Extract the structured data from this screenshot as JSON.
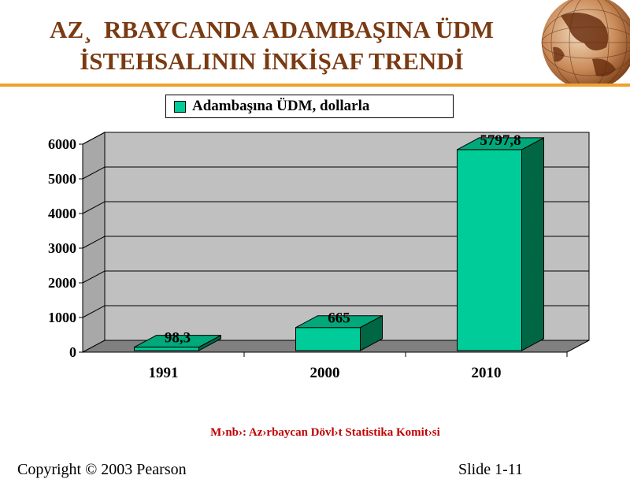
{
  "title_lines": [
    "AZ¸  RBAYCANDA ADAMBAŞINA ÜDM",
    "İSTEHSALININ İNKİŞAF TRENDİ"
  ],
  "colors": {
    "title": "#7a3a12",
    "rule": "#f0a030",
    "bar_front": "#00cc99",
    "bar_side": "#006644",
    "bar_top": "#00a87a",
    "wall": "#c0c0c0",
    "floor": "#808080",
    "source": "#c00000"
  },
  "chart_data": {
    "type": "bar",
    "categories": [
      "1991",
      "2000",
      "2010"
    ],
    "series": [
      {
        "name": "Adambaşına ÜDM, dollarla",
        "values": [
          98.3,
          665,
          5797.8
        ]
      }
    ],
    "data_labels": [
      "98,3",
      "665",
      "5797,8"
    ],
    "yticks": [
      "0",
      "1000",
      "2000",
      "3000",
      "4000",
      "5000",
      "6000"
    ],
    "ylim": [
      0,
      6000
    ],
    "grid": true,
    "legend_position": "top",
    "style": "3d"
  },
  "source_text": "M›nb›: Az›rbaycan Dövl›t Statistika Komit›si",
  "footer": {
    "left": "Copyright © 2003 Pearson",
    "right": "Slide 1-11"
  },
  "icons": {
    "globe": "globe-icon"
  }
}
